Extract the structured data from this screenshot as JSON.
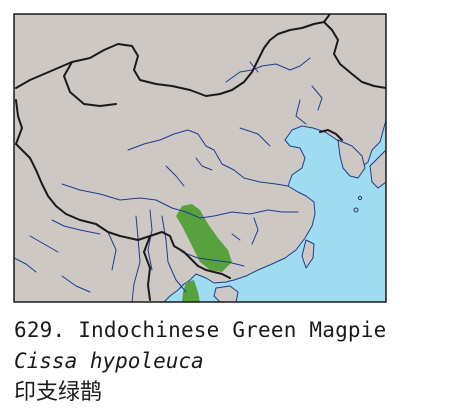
{
  "map": {
    "colors": {
      "sea": "#9fdcf2",
      "land": "#cdc8c4",
      "border": "#1a1a1a",
      "river": "#1f3c8c",
      "range": "#58a23e"
    }
  },
  "caption": {
    "title": "629. Indochinese Green Magpie",
    "scientific_name": "Cissa hypoleuca",
    "chinese_name": "印支绿鹊"
  }
}
